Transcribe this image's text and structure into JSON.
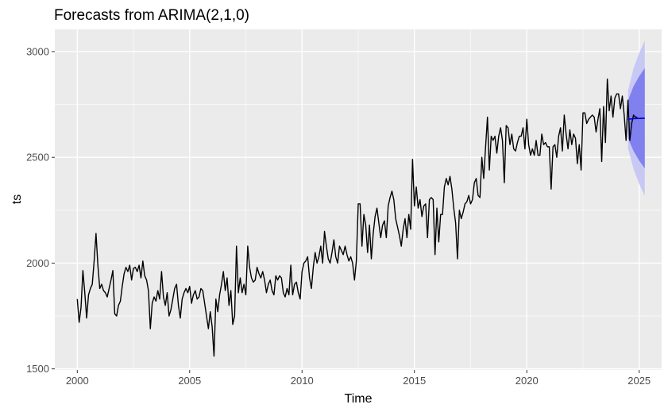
{
  "chart_data": {
    "type": "line",
    "title": "Forecasts from ARIMA(2,1,0)",
    "xlabel": "Time",
    "ylabel": "ts",
    "xlim": [
      1999.0,
      2026.0
    ],
    "ylim": [
      1495,
      3105
    ],
    "x_ticks": [
      2000,
      2005,
      2010,
      2015,
      2020,
      2025
    ],
    "x_tick_labels": [
      "2000",
      "2005",
      "2010",
      "2015",
      "2020",
      "2025"
    ],
    "y_ticks": [
      1500,
      2000,
      2500,
      3000
    ],
    "y_tick_labels": [
      "1500",
      "2000",
      "2500",
      "3000"
    ],
    "grid": true,
    "colors": {
      "panel": "#ebebeb",
      "grid": "#ffffff",
      "observed": "#000000",
      "forecast": "#0000cc",
      "pi80": "#8080ee",
      "pi95": "#c8c8f4"
    },
    "series": [
      {
        "start": 2000.0,
        "frequency": 12,
        "values": [
          1830,
          1720,
          1790,
          1965,
          1860,
          1740,
          1850,
          1880,
          1900,
          2010,
          2140,
          1990,
          1880,
          1900,
          1870,
          1860,
          1840,
          1880,
          1920,
          1965,
          1760,
          1750,
          1800,
          1820,
          1890,
          1950,
          1980,
          1960,
          1990,
          1920,
          1975,
          1980,
          1960,
          1990,
          1930,
          2010,
          1940,
          1920,
          1870,
          1690,
          1810,
          1840,
          1820,
          1870,
          1830,
          1960,
          1840,
          1800,
          1860,
          1750,
          1780,
          1830,
          1880,
          1900,
          1800,
          1740,
          1830,
          1860,
          1880,
          1860,
          1890,
          1810,
          1850,
          1870,
          1830,
          1840,
          1880,
          1870,
          1810,
          1750,
          1690,
          1770,
          1700,
          1560,
          1830,
          1770,
          1850,
          1900,
          1960,
          1870,
          1930,
          1800,
          1870,
          1710,
          1750,
          2080,
          1860,
          1930,
          1860,
          1900,
          1850,
          2080,
          1980,
          1930,
          1910,
          1920,
          1980,
          1950,
          1930,
          1960,
          1920,
          1860,
          1900,
          1920,
          1870,
          1850,
          1940,
          1920,
          1940,
          1930,
          1860,
          1840,
          1880,
          1850,
          1990,
          1850,
          1900,
          1910,
          1860,
          1830,
          1960,
          2000,
          2010,
          2030,
          1930,
          1880,
          1980,
          2050,
          2000,
          2030,
          2080,
          2000,
          2150,
          2080,
          2020,
          2000,
          2050,
          2110,
          2030,
          2000,
          2080,
          2060,
          2040,
          2080,
          2040,
          2010,
          2030,
          2000,
          1920,
          2010,
          2280,
          2280,
          2080,
          2230,
          2180,
          2050,
          2180,
          2020,
          2140,
          2220,
          2260,
          2190,
          2120,
          2180,
          2200,
          2120,
          2270,
          2310,
          2340,
          2300,
          2210,
          2170,
          2130,
          2080,
          2160,
          2210,
          2120,
          2230,
          2160,
          2490,
          2270,
          2360,
          2260,
          2300,
          2220,
          2270,
          2280,
          2120,
          2300,
          2310,
          2300,
          2040,
          2260,
          2100,
          2230,
          2230,
          2360,
          2400,
          2370,
          2410,
          2350,
          2260,
          2190,
          2020,
          2250,
          2210,
          2240,
          2280,
          2290,
          2320,
          2280,
          2300,
          2380,
          2400,
          2320,
          2310,
          2500,
          2400,
          2550,
          2690,
          2440,
          2600,
          2580,
          2600,
          2520,
          2600,
          2640,
          2580,
          2380,
          2650,
          2640,
          2560,
          2610,
          2540,
          2530,
          2570,
          2600,
          2600,
          2640,
          2540,
          2680,
          2560,
          2510,
          2540,
          2510,
          2580,
          2510,
          2510,
          2610,
          2560,
          2570,
          2550,
          2550,
          2350,
          2550,
          2560,
          2500,
          2600,
          2640,
          2530,
          2700,
          2610,
          2540,
          2630,
          2560,
          2610,
          2590,
          2470,
          2560,
          2440,
          2710,
          2710,
          2660,
          2680,
          2690,
          2700,
          2690,
          2620,
          2680,
          2730,
          2480,
          2740,
          2570,
          2870,
          2720,
          2790,
          2690,
          2780,
          2800,
          2800,
          2730,
          2790,
          2700,
          2580,
          2770,
          2580,
          2660,
          2700,
          2690,
          2690
        ]
      },
      {
        "name": "forecast",
        "start": 2024.5,
        "end": 2025.25,
        "values": [
          2680,
          2683,
          2684,
          2685
        ],
        "lo80": [
          2592,
          2530,
          2485,
          2448
        ],
        "hi80": [
          2768,
          2836,
          2883,
          2922
        ],
        "lo95": [
          2545,
          2445,
          2375,
          2318
        ],
        "hi95": [
          2815,
          2921,
          2993,
          3052
        ]
      }
    ]
  }
}
